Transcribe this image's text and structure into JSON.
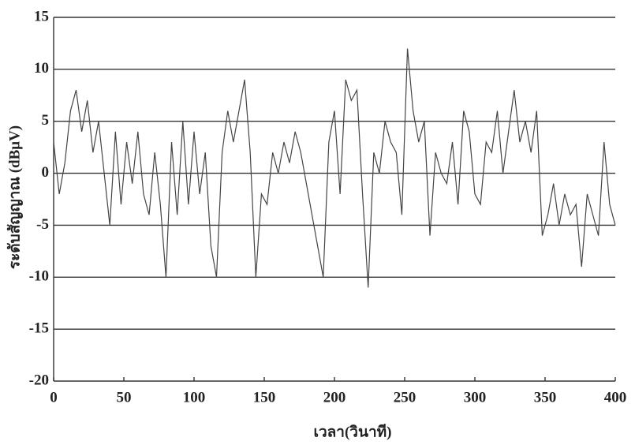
{
  "chart_data": {
    "type": "line",
    "x_label": "เวลา(วินาที)",
    "y_label": "ระดับสัญญาณ (dBμV)",
    "x": [
      0,
      4,
      8,
      12,
      16,
      20,
      24,
      28,
      32,
      36,
      40,
      44,
      48,
      52,
      56,
      60,
      64,
      68,
      72,
      76,
      80,
      84,
      88,
      92,
      96,
      100,
      104,
      108,
      112,
      116,
      120,
      124,
      128,
      132,
      136,
      140,
      144,
      148,
      152,
      156,
      160,
      164,
      168,
      172,
      176,
      180,
      184,
      188,
      192,
      196,
      200,
      204,
      208,
      212,
      216,
      220,
      224,
      228,
      232,
      236,
      240,
      244,
      248,
      252,
      256,
      260,
      264,
      268,
      272,
      276,
      280,
      284,
      288,
      292,
      296,
      300,
      304,
      308,
      312,
      316,
      320,
      324,
      328,
      332,
      336,
      340,
      344,
      348,
      352,
      356,
      360,
      364,
      368,
      372,
      376,
      380,
      384,
      388,
      392,
      396,
      400
    ],
    "series": [
      {
        "color": "#444444",
        "values": [
          3,
          -2,
          1,
          6,
          8,
          4,
          7,
          2,
          5,
          0,
          -5,
          4,
          -3,
          3,
          -1,
          4,
          -2,
          -4,
          2,
          -3,
          -10,
          3,
          -4,
          5,
          -3,
          4,
          -2,
          2,
          -7,
          -10,
          2,
          6,
          3,
          6,
          9,
          2,
          -10,
          -2,
          -3,
          2,
          0,
          3,
          1,
          4,
          2,
          -1,
          -4,
          -7,
          -10,
          3,
          6,
          -2,
          9,
          7,
          8,
          -2,
          -11,
          2,
          0,
          5,
          3,
          2,
          -4,
          12,
          6,
          3,
          5,
          -6,
          2,
          0,
          -1,
          3,
          -3,
          6,
          4,
          -2,
          -3,
          3,
          2,
          6,
          0,
          4,
          8,
          3,
          5,
          2,
          6,
          -6,
          -4,
          -1,
          -5,
          -2,
          -4,
          -3,
          -9,
          -2,
          -4,
          -6,
          3,
          -3,
          -5
        ]
      }
    ],
    "xlim": [
      0,
      400
    ],
    "xticks": [
      0,
      50,
      100,
      150,
      200,
      250,
      300,
      350,
      400
    ],
    "ylim": [
      -20,
      15
    ],
    "yticks": [
      15,
      10,
      5,
      0,
      -5,
      -10,
      -15,
      -20
    ],
    "grid": true
  }
}
